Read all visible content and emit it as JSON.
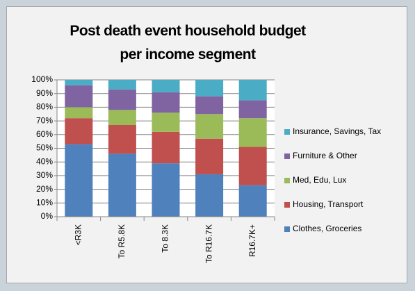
{
  "chart_data": {
    "type": "stacked_bar",
    "title": "Post death event household budget per income segment",
    "categories": [
      "<R3K",
      "To R5.8K",
      "To 8.3K",
      "To R16.7K",
      "R16.7K+"
    ],
    "series": [
      {
        "name": "Clothes, Groceries",
        "color": "#4f81bd",
        "values": [
          53,
          46,
          39,
          31,
          23
        ]
      },
      {
        "name": "Housing, Transport",
        "color": "#c0504d",
        "values": [
          19,
          21,
          23,
          26,
          28
        ]
      },
      {
        "name": "Med, Edu, Lux",
        "color": "#9bbb59",
        "values": [
          8,
          11,
          14,
          18,
          21
        ]
      },
      {
        "name": "Furniture & Other",
        "color": "#8064a2",
        "values": [
          16,
          15,
          15,
          13,
          13
        ]
      },
      {
        "name": "Insurance, Savings,  Tax",
        "color": "#4bacc6",
        "values": [
          4,
          7,
          9,
          12,
          15
        ]
      }
    ],
    "ylim": [
      0,
      100
    ],
    "yticks": [
      {
        "value": 0,
        "label": "0%"
      },
      {
        "value": 10,
        "label": "10%"
      },
      {
        "value": 20,
        "label": "20%"
      },
      {
        "value": 30,
        "label": "30%"
      },
      {
        "value": 40,
        "label": "40%"
      },
      {
        "value": 50,
        "label": "50%"
      },
      {
        "value": 60,
        "label": "60%"
      },
      {
        "value": 70,
        "label": "70%"
      },
      {
        "value": 80,
        "label": "80%"
      },
      {
        "value": 90,
        "label": "90%"
      },
      {
        "value": 100,
        "label": "100%"
      }
    ],
    "grid": true,
    "legend": "right"
  }
}
